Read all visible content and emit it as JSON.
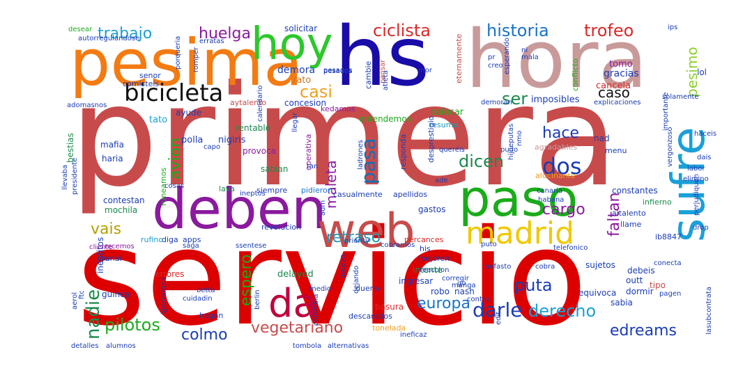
{
  "words": [
    {
      "text": "servicio",
      "color": "#dc0000"
    },
    {
      "text": "primera",
      "color": "#c84b4b"
    },
    {
      "text": "hora",
      "color": "#c99a9a"
    },
    {
      "text": "hs",
      "color": "#1a0ca8"
    },
    {
      "text": "pesima",
      "color": "#f47b12"
    },
    {
      "text": "deben",
      "color": "#8a1a9e"
    },
    {
      "text": "web",
      "color": "#c84b4b"
    },
    {
      "text": "paso",
      "color": "#1aab1a"
    },
    {
      "text": "sufre",
      "color": "#1aa0d8"
    },
    {
      "text": "hoy",
      "color": "#2bc82b"
    },
    {
      "text": "da",
      "color": "#c0003c"
    },
    {
      "text": "madrid",
      "color": "#f0c800"
    },
    {
      "text": "bicicleta",
      "color": "#111111"
    },
    {
      "text": "historia",
      "color": "#1a72c8"
    },
    {
      "text": "trofeo",
      "color": "#dc2828"
    },
    {
      "text": "ciclista",
      "color": "#dc2828"
    },
    {
      "text": "huelga",
      "color": "#8a1a9e"
    },
    {
      "text": "trabajo",
      "color": "#1aa0d8"
    },
    {
      "text": "casi",
      "color": "#f0a020"
    },
    {
      "text": "dos",
      "color": "#1a3cb4"
    },
    {
      "text": "pasa",
      "color": "#1a6cb4"
    },
    {
      "text": "dicen",
      "color": "#1a8a4c"
    },
    {
      "text": "avion",
      "color": "#1aab1a"
    },
    {
      "text": "maleta",
      "color": "#8a1a9e"
    },
    {
      "text": "hace",
      "color": "#1a3cb4"
    },
    {
      "text": "caso",
      "color": "#111111"
    },
    {
      "text": "pesimo",
      "color": "#8ad02a"
    },
    {
      "text": "ser",
      "color": "#1a8a4c"
    },
    {
      "text": "cargo",
      "color": "#8a1a9e"
    },
    {
      "text": "faltan",
      "color": "#8a1a9e"
    },
    {
      "text": "retraso",
      "color": "#1a9ab4"
    },
    {
      "text": "vais",
      "color": "#b4a000"
    },
    {
      "text": "nadie",
      "color": "#1a8a4c"
    },
    {
      "text": "espero",
      "color": "#1aab1a"
    },
    {
      "text": "puta",
      "color": "#1a3cb4"
    },
    {
      "text": "darle",
      "color": "#1a3cb4"
    },
    {
      "text": "derecho",
      "color": "#1aa0d8"
    },
    {
      "text": "europa",
      "color": "#1a72c8"
    },
    {
      "text": "pilotos",
      "color": "#1aab1a"
    },
    {
      "text": "colmo",
      "color": "#1a3cb4"
    },
    {
      "text": "vegetariano",
      "color": "#c84b4b"
    },
    {
      "text": "edreams",
      "color": "#1a3cb4"
    },
    {
      "text": "demora",
      "color": "#1a3cb4"
    },
    {
      "text": "rato",
      "color": "#c87828"
    },
    {
      "text": "entendemos",
      "color": "#1aab1a"
    },
    {
      "text": "colocar",
      "color": "#1aab1a"
    },
    {
      "text": "imposibles",
      "color": "#1a3cb4"
    },
    {
      "text": "gracias",
      "color": "#1a3cb4"
    },
    {
      "text": "cancela",
      "color": "#dc2828"
    },
    {
      "text": "tomo",
      "color": "#8a1a9e"
    },
    {
      "text": "lol",
      "color": "#1a3cb4"
    },
    {
      "text": "conflicto",
      "color": "#1aab1a"
    },
    {
      "text": "eternamente",
      "color": "#c84b4b"
    },
    {
      "text": "solicitar",
      "color": "#1a3cb4"
    },
    {
      "text": "pensar",
      "color": "#c84b4b"
    },
    {
      "text": "cambie",
      "color": "#1a3cb4"
    },
    {
      "text": "concesion",
      "color": "#1a3cb4"
    },
    {
      "text": "resumo",
      "color": "#1a9ab4"
    },
    {
      "text": "aytalento",
      "color": "#c84b4b"
    },
    {
      "text": "ayude",
      "color": "#1a3cb4"
    },
    {
      "text": "kedamos",
      "color": "#8a1a9e"
    },
    {
      "text": "tato",
      "color": "#1aa0d8"
    },
    {
      "text": "rentable",
      "color": "#1a8a4c"
    },
    {
      "text": "nigiris",
      "color": "#1a3cb4"
    },
    {
      "text": "provoca",
      "color": "#8a1a9e"
    },
    {
      "text": "operativa",
      "color": "#8a1a9e"
    },
    {
      "text": "mafia",
      "color": "#1a3cb4"
    },
    {
      "text": "haria",
      "color": "#1a3cb4"
    },
    {
      "text": "bestias",
      "color": "#1a8a4c"
    },
    {
      "text": "polla",
      "color": "#1a3cb4"
    },
    {
      "text": "sabian",
      "color": "#1a8a4c"
    },
    {
      "text": "nad",
      "color": "#1a3cb4"
    },
    {
      "text": "menu",
      "color": "#1a3cb4"
    },
    {
      "text": "agradables",
      "color": "#c99a9a"
    },
    {
      "text": "desprestigio",
      "color": "#1a3cb4"
    },
    {
      "text": "responda",
      "color": "#1a3cb4"
    },
    {
      "text": "ladrones",
      "color": "#1a3cb4"
    },
    {
      "text": "siempre",
      "color": "#1a3cb4"
    },
    {
      "text": "pidieron",
      "color": "#1a72c8"
    },
    {
      "text": "casualmente",
      "color": "#1a3cb4"
    },
    {
      "text": "apellidos",
      "color": "#1a3cb4"
    },
    {
      "text": "alucinante",
      "color": "#f0a020"
    },
    {
      "text": "constantes",
      "color": "#1a3cb4"
    },
    {
      "text": "infierno",
      "color": "#1a8a4c"
    },
    {
      "text": "aitalento",
      "color": "#1a3cb4"
    },
    {
      "text": "llame",
      "color": "#1a3cb4"
    },
    {
      "text": "gastos",
      "color": "#1a3cb4"
    },
    {
      "text": "runeamos",
      "color": "#1aab1a"
    },
    {
      "text": "lava",
      "color": "#1a8a4c"
    },
    {
      "text": "contestan",
      "color": "#1a3cb4"
    },
    {
      "text": "mochila",
      "color": "#1a8a4c"
    },
    {
      "text": "ineptitos",
      "color": "#1a3cb4"
    },
    {
      "text": "diga",
      "color": "#1a3cb4"
    },
    {
      "text": "apps",
      "color": "#1a3cb4"
    },
    {
      "text": "rufino",
      "color": "#1aa0d8"
    },
    {
      "text": "recemos",
      "color": "#8a1a9e"
    },
    {
      "text": "revolucion",
      "color": "#1a3cb4"
    },
    {
      "text": "percances",
      "color": "#dc2828"
    },
    {
      "text": "ib8847",
      "color": "#1a3cb4"
    },
    {
      "text": "his",
      "color": "#1a3cb4"
    },
    {
      "text": "mejoren",
      "color": "#1a3cb4"
    },
    {
      "text": "ryanai",
      "color": "#1a3cb4"
    },
    {
      "text": "errores",
      "color": "#dc2828"
    },
    {
      "text": "delayed",
      "color": "#1a8a4c"
    },
    {
      "text": "intente",
      "color": "#1a8a4c"
    },
    {
      "text": "ingresar",
      "color": "#1a3cb4"
    },
    {
      "text": "sujetos",
      "color": "#1a3cb4"
    },
    {
      "text": "debeis",
      "color": "#1a3cb4"
    },
    {
      "text": "outt",
      "color": "#1a3cb4"
    },
    {
      "text": "dormir",
      "color": "#1a3cb4"
    },
    {
      "text": "tipo",
      "color": "#c84b4b"
    },
    {
      "text": "sabia",
      "color": "#1a3cb4"
    },
    {
      "text": "equivoca",
      "color": "#1a3cb4"
    },
    {
      "text": "robo",
      "color": "#1a3cb4"
    },
    {
      "text": "duena",
      "color": "#1a3cb4"
    },
    {
      "text": "nash",
      "color": "#1a3cb4"
    },
    {
      "text": "guinea",
      "color": "#1a3cb4"
    },
    {
      "text": "basura",
      "color": "#dc2828"
    },
    {
      "text": "descarados",
      "color": "#1a3cb4"
    },
    {
      "text": "tonelada",
      "color": "#f0a020"
    },
    {
      "text": "lasubcontrata",
      "color": "#1a3cb4"
    },
    {
      "text": "hagan",
      "color": "#1a3cb4"
    },
    {
      "text": "aerol",
      "color": "#1a3cb4"
    },
    {
      "text": "comisteis",
      "color": "#1a3cb4"
    },
    {
      "text": "autorregulandose",
      "color": "#1a3cb4"
    },
    {
      "text": "desear",
      "color": "#1aab1a"
    },
    {
      "text": "senor",
      "color": "#1a3cb4"
    },
    {
      "text": "pesados",
      "color": "#1a3cb4"
    },
    {
      "text": "esperando",
      "color": "#1a3cb4"
    },
    {
      "text": "explicaciones",
      "color": "#1a3cb4"
    },
    {
      "text": "importante",
      "color": "#1a3cb4"
    },
    {
      "text": "haceis",
      "color": "#1a3cb4"
    },
    {
      "text": "dais",
      "color": "#1a3cb4"
    },
    {
      "text": "labor",
      "color": "#1a3cb4"
    },
    {
      "text": "elimino",
      "color": "#1a3cb4"
    },
    {
      "text": "perjudiquen",
      "color": "#1a3cb4"
    },
    {
      "text": "drop",
      "color": "#1a3cb4"
    },
    {
      "text": "cliente",
      "color": "#8a1a9e"
    },
    {
      "text": "priority",
      "color": "#1a3cb4"
    },
    {
      "text": "cobramos",
      "color": "#1a3cb4"
    },
    {
      "text": "reaccion",
      "color": "#1a3cb4"
    },
    {
      "text": "nefasto",
      "color": "#1a3cb4"
    },
    {
      "text": "conecta",
      "color": "#1a3cb4"
    },
    {
      "text": "pagen",
      "color": "#1a3cb4"
    },
    {
      "text": "contos",
      "color": "#1a3cb4"
    },
    {
      "text": "alumnos",
      "color": "#1a3cb4"
    },
    {
      "text": "detalles",
      "color": "#1a3cb4"
    },
    {
      "text": "berlin",
      "color": "#1a3cb4"
    },
    {
      "text": "cuidadin",
      "color": "#1a3cb4"
    },
    {
      "text": "adm",
      "color": "#1a3cb4"
    },
    {
      "text": "ineptos",
      "color": "#1a3cb4"
    },
    {
      "text": "queréis",
      "color": "#1a3cb4"
    },
    {
      "text": "canaria",
      "color": "#1a3cb4"
    },
    {
      "text": "habana",
      "color": "#1a3cb4"
    },
    {
      "text": "saga",
      "color": "#1a3cb4"
    },
    {
      "text": "ssentese",
      "color": "#1a3cb4"
    },
    {
      "text": "vergonzoso",
      "color": "#1a3cb4"
    },
    {
      "text": "adomasnos",
      "color": "#1a3cb4"
    },
    {
      "text": "porqueria",
      "color": "#1a3cb4"
    },
    {
      "text": "romper",
      "color": "#1a3cb4"
    },
    {
      "text": "erratas",
      "color": "#1a3cb4"
    },
    {
      "text": "dejando",
      "color": "#1a3cb4"
    },
    {
      "text": "manga",
      "color": "#1a3cb4"
    },
    {
      "text": "telefonico",
      "color": "#1a3cb4"
    },
    {
      "text": "puto",
      "color": "#1a3cb4"
    },
    {
      "text": "corregir",
      "color": "#1a3cb4"
    },
    {
      "text": "cobra",
      "color": "#1a3cb4"
    },
    {
      "text": "edit",
      "color": "#1a3cb4"
    },
    {
      "text": "ineficaz",
      "color": "#1a3cb4"
    },
    {
      "text": "medio",
      "color": "#1a3cb4"
    },
    {
      "text": "tombola",
      "color": "#1a3cb4"
    },
    {
      "text": "alternativas",
      "color": "#1a3cb4"
    },
    {
      "text": "ignorantes",
      "color": "#1a3cb4"
    },
    {
      "text": "betta",
      "color": "#1a3cb4"
    },
    {
      "text": "llevaba",
      "color": "#1a3cb4"
    },
    {
      "text": "presidente",
      "color": "#1a3cb4"
    },
    {
      "text": "cosas",
      "color": "#1a3cb4"
    },
    {
      "text": "capo",
      "color": "#1a3cb4"
    },
    {
      "text": "tan",
      "color": "#1a3cb4"
    },
    {
      "text": "ade",
      "color": "#1a3cb4"
    },
    {
      "text": "pudo",
      "color": "#1a3cb4"
    },
    {
      "text": "hijueputas",
      "color": "#1a3cb4"
    },
    {
      "text": "nmo",
      "color": "#1a3cb4"
    },
    {
      "text": "ips",
      "color": "#1a3cb4"
    },
    {
      "text": "mala",
      "color": "#1a3cb4"
    },
    {
      "text": "ni",
      "color": "#1a3cb4"
    },
    {
      "text": "pr",
      "color": "#1a3cb4"
    },
    {
      "text": "creo",
      "color": "#1a3cb4"
    },
    {
      "text": "atleta",
      "color": "#1a3cb4"
    },
    {
      "text": "go",
      "color": "#1a3cb4"
    },
    {
      "text": "ftc",
      "color": "#1a3cb4"
    },
    {
      "text": "ib6620",
      "color": "#1a3cb4"
    },
    {
      "text": "colombia",
      "color": "#1a3cb4"
    },
    {
      "text": "demoran",
      "color": "#1a3cb4"
    },
    {
      "text": "calendario",
      "color": "#1a3cb4"
    },
    {
      "text": "mor",
      "color": "#1a3cb4"
    },
    {
      "text": "llegar",
      "color": "#1a3cb4"
    },
    {
      "text": "solamente",
      "color": "#1a3cb4"
    },
    {
      "text": "pesados",
      "color": "#1a3cb4"
    }
  ]
}
